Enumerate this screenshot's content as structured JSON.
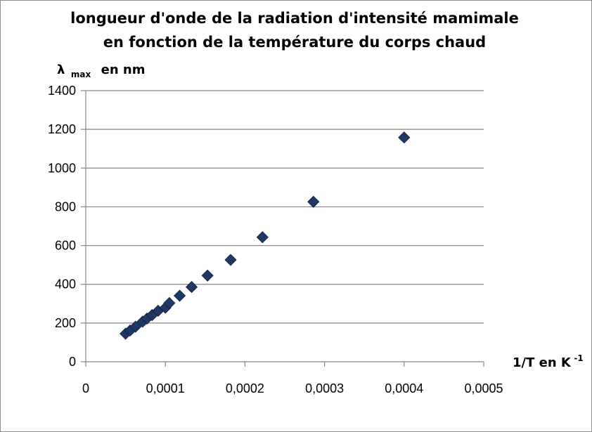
{
  "chart_data": {
    "type": "scatter",
    "title_line1": "longueur d'onde de la radiation d'intensité mamimale",
    "title_line2": "en fonction de la température du corps chaud",
    "ylabel": {
      "symbol": "λ",
      "subscript": "max",
      "suffix": "en nm"
    },
    "xlabel": {
      "prefix": "1/T  en K",
      "superscript": "-1"
    },
    "xlim": [
      0,
      0.0005
    ],
    "ylim": [
      0,
      1400
    ],
    "x_ticks": [
      0,
      0.0001,
      0.0002,
      0.0003,
      0.0004,
      0.0005
    ],
    "x_tick_labels": [
      "0",
      "0,0001",
      "0,0002",
      "0,0003",
      "0,0004",
      "0,0005"
    ],
    "y_ticks": [
      0,
      200,
      400,
      600,
      800,
      1000,
      1200,
      1400
    ],
    "y_tick_labels": [
      "0",
      "200",
      "400",
      "600",
      "800",
      "1000",
      "1200",
      "1400"
    ],
    "grid": "horizontal",
    "marker": "diamond",
    "marker_color": "#1f3864",
    "points": [
      {
        "x": 5e-05,
        "y": 145
      },
      {
        "x": 5.56e-05,
        "y": 161
      },
      {
        "x": 6.25e-05,
        "y": 181
      },
      {
        "x": 7.14e-05,
        "y": 207
      },
      {
        "x": 7.69e-05,
        "y": 223
      },
      {
        "x": 8.33e-05,
        "y": 241
      },
      {
        "x": 9.09e-05,
        "y": 263
      },
      {
        "x": 0.0001,
        "y": 279
      },
      {
        "x": 0.000105,
        "y": 303
      },
      {
        "x": 0.000118,
        "y": 341
      },
      {
        "x": 0.000133,
        "y": 386
      },
      {
        "x": 0.000153,
        "y": 445
      },
      {
        "x": 0.000182,
        "y": 526
      },
      {
        "x": 0.000222,
        "y": 643
      },
      {
        "x": 0.000286,
        "y": 826
      },
      {
        "x": 0.0004,
        "y": 1158
      }
    ]
  }
}
